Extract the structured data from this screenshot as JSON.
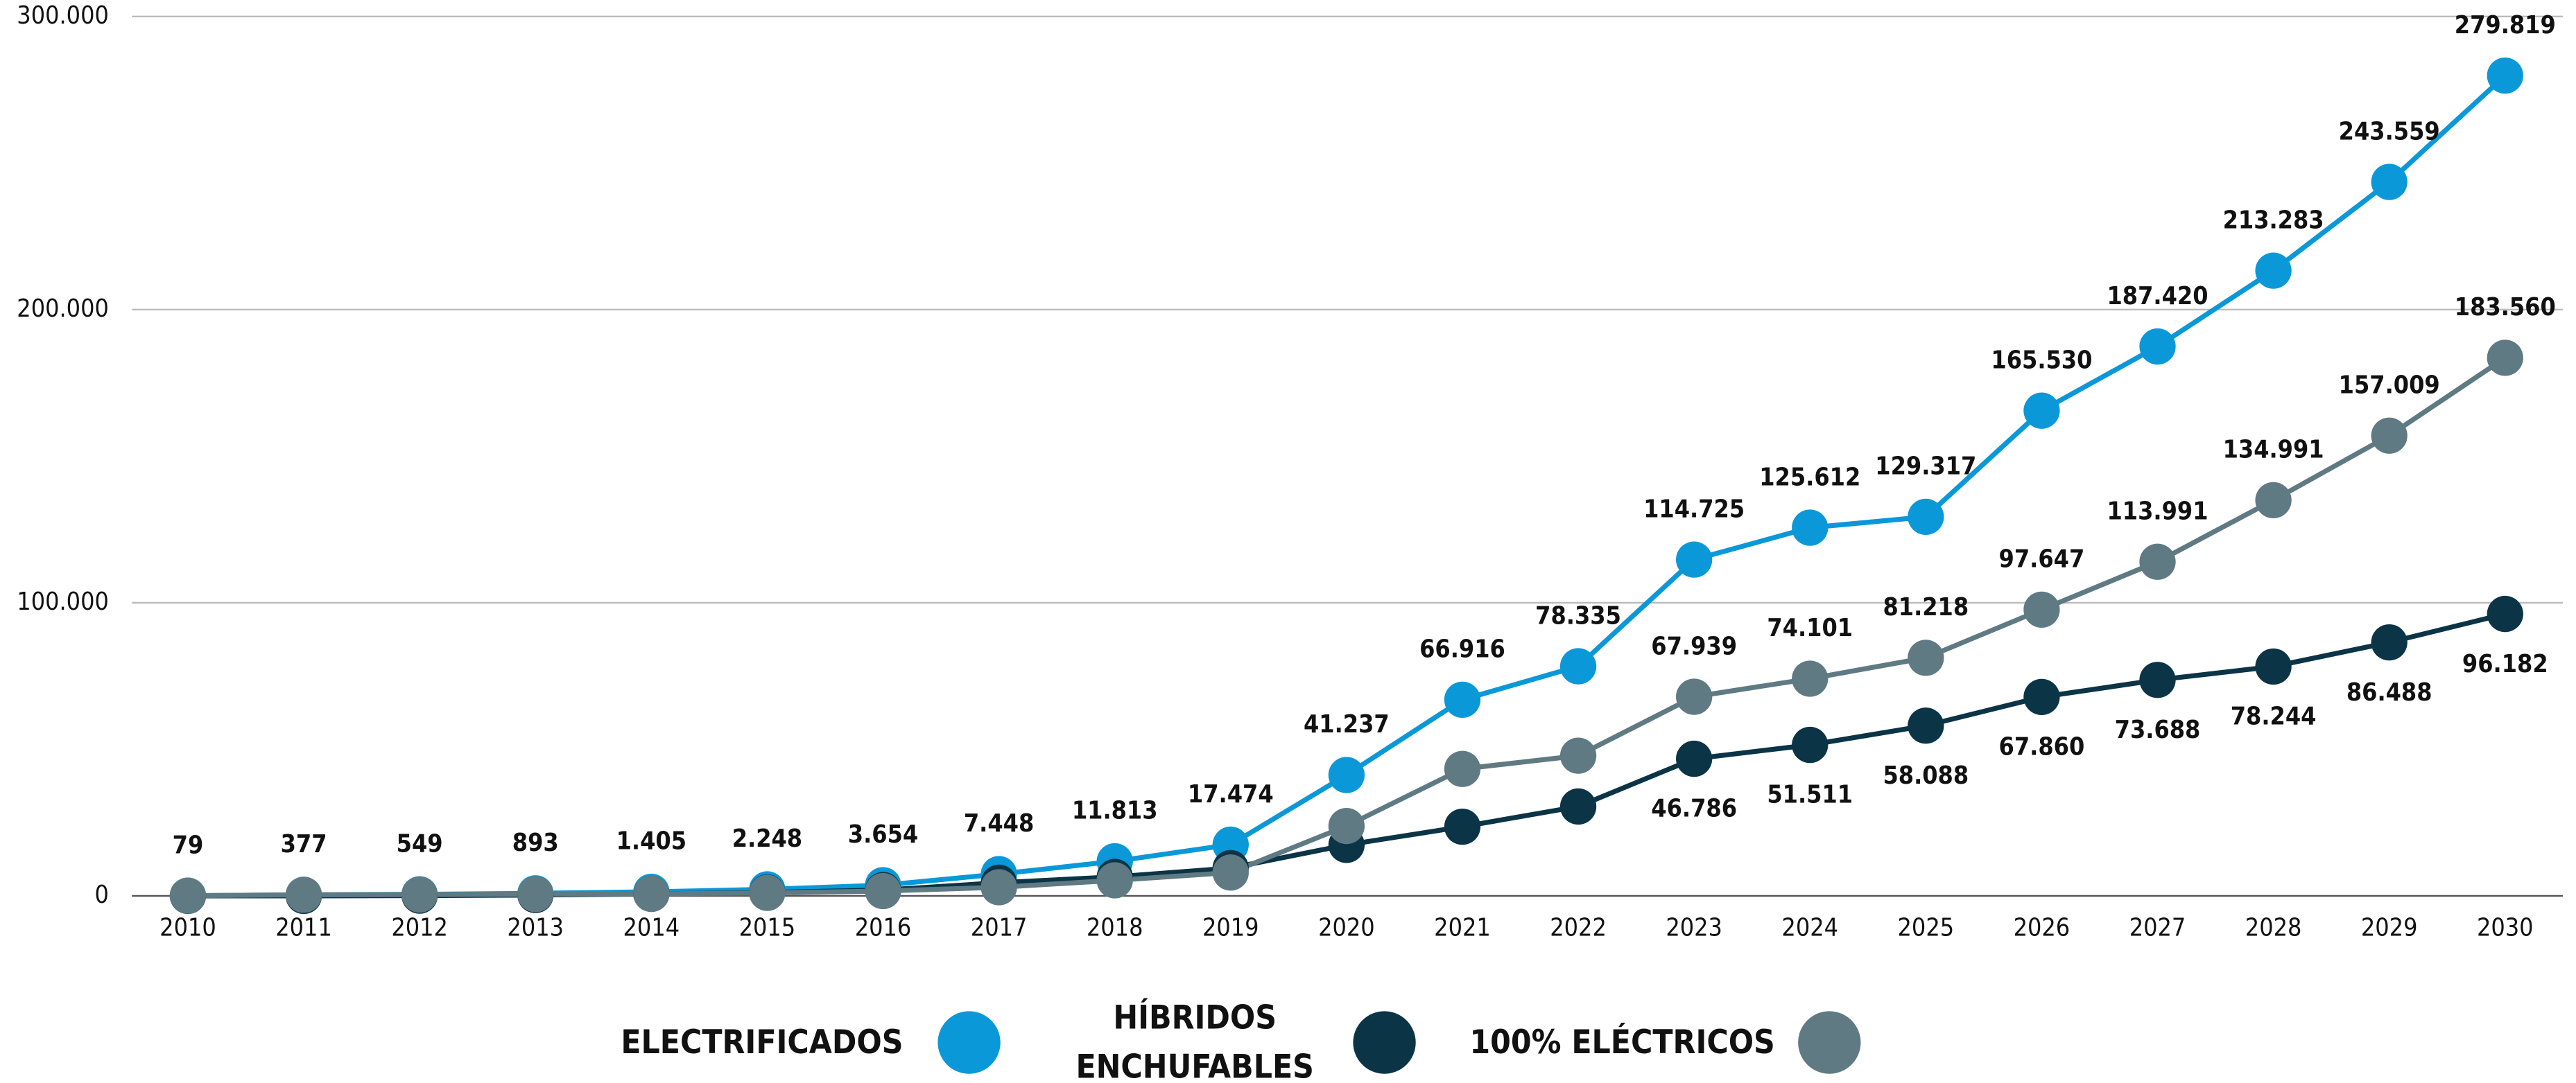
{
  "chart_data": {
    "type": "line",
    "categories": [
      "2010",
      "2011",
      "2012",
      "2013",
      "2014",
      "2015",
      "2016",
      "2017",
      "2018",
      "2019",
      "2020",
      "2021",
      "2022",
      "2023",
      "2024",
      "2025",
      "2026",
      "2027",
      "2028",
      "2029",
      "2030"
    ],
    "series": [
      {
        "name": "ELECTRIFICADOS",
        "color": "#0a98d8",
        "label_position": "above",
        "values": [
          79,
          377,
          549,
          893,
          1405,
          2248,
          3654,
          7448,
          11813,
          17474,
          41237,
          66916,
          78335,
          114725,
          125612,
          129317,
          165530,
          187420,
          213283,
          243559,
          279819
        ],
        "value_labels": [
          "79",
          "377",
          "549",
          "893",
          "1.405",
          "2.248",
          "3.654",
          "7.448",
          "11.813",
          "17.474",
          "41.237",
          "66.916",
          "78.335",
          "114.725",
          "125.612",
          "129.317",
          "165.530",
          "187.420",
          "213.283",
          "243.559",
          "279.819"
        ]
      },
      {
        "name": "HÍBRIDOS ENCHUFABLES",
        "color": "#0b3446",
        "label_position": "below",
        "values": [
          0,
          0,
          100,
          300,
          700,
          1200,
          2000,
          4500,
          6500,
          9500,
          17400,
          23600,
          30500,
          46786,
          51511,
          58088,
          67860,
          73688,
          78244,
          86488,
          96182
        ],
        "value_labels": [
          null,
          null,
          null,
          null,
          null,
          null,
          null,
          null,
          null,
          null,
          null,
          null,
          null,
          "46.786",
          "51.511",
          "58.088",
          "67.860",
          "73.688",
          "78.244",
          "86.488",
          "96.182"
        ]
      },
      {
        "name": "100% ELÉCTRICOS",
        "color": "#5f7a83",
        "label_position": "above",
        "values": [
          79,
          377,
          449,
          593,
          705,
          1048,
          1654,
          2948,
          5313,
          7974,
          23837,
          43316,
          47835,
          67939,
          74101,
          81218,
          97647,
          113991,
          134991,
          157009,
          183560
        ],
        "value_labels": [
          null,
          null,
          null,
          null,
          null,
          null,
          null,
          null,
          null,
          null,
          null,
          null,
          null,
          "67.939",
          "74.101",
          "81.218",
          "97.647",
          "113.991",
          "134.991",
          "157.009",
          "183.560"
        ]
      }
    ],
    "ylim": [
      0,
      300000
    ],
    "yticks": [
      0,
      {
        "value": 100000,
        "label": "100.000"
      },
      {
        "value": 200000,
        "label": "200.000"
      },
      {
        "value": 300000,
        "label": "300.000"
      }
    ],
    "grid": true
  }
}
